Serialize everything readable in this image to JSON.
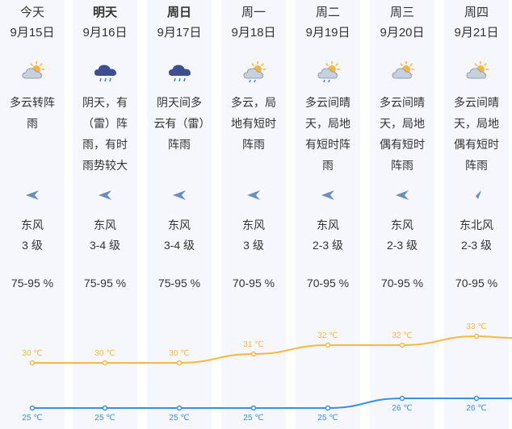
{
  "days": [
    {
      "day": "今天",
      "date": "9月15日",
      "icon": "cloudy-sun-icon",
      "desc": "多云转阵雨",
      "wind_dir": "东风",
      "wind_level": "3 级",
      "wind_icon": "wind-east-arrow-icon",
      "humidity": "75-95 %",
      "high": "30 ℃",
      "low": "25 ℃"
    },
    {
      "day": "明天",
      "date": "9月16日",
      "icon": "thunder-rain-icon",
      "desc": "阴天，有（雷）阵雨，有时雨势较大",
      "wind_dir": "东风",
      "wind_level": "3-4 级",
      "wind_icon": "wind-east-arrow-icon",
      "humidity": "75-95 %",
      "high": "30 ℃",
      "low": "25 ℃"
    },
    {
      "day": "周日",
      "date": "9月17日",
      "icon": "thunder-rain-icon",
      "desc": "阴天间多云有（雷）阵雨",
      "wind_dir": "东风",
      "wind_level": "3-4 级",
      "wind_icon": "wind-east-arrow-icon",
      "humidity": "75-95 %",
      "high": "30 ℃",
      "low": "25 ℃"
    },
    {
      "day": "周一",
      "date": "9月18日",
      "icon": "sun-cloud-rain-icon",
      "desc": "多云，局地有短时阵雨",
      "wind_dir": "东风",
      "wind_level": "3 级",
      "wind_icon": "wind-east-arrow-icon",
      "humidity": "70-95 %",
      "high": "31 ℃",
      "low": "25 ℃"
    },
    {
      "day": "周二",
      "date": "9月19日",
      "icon": "sun-cloud-rain-icon",
      "desc": "多云间晴天，局地有短时阵雨",
      "wind_dir": "东风",
      "wind_level": "2-3 级",
      "wind_icon": "wind-east-arrow-icon",
      "humidity": "70-95 %",
      "high": "32 ℃",
      "low": "25 ℃"
    },
    {
      "day": "周三",
      "date": "9月20日",
      "icon": "sun-cloud-icon",
      "desc": "多云间晴天，局地偶有短时阵雨",
      "wind_dir": "东风",
      "wind_level": "2-3 级",
      "wind_icon": "wind-east-arrow-icon",
      "humidity": "70-95 %",
      "high": "32 ℃",
      "low": "26 ℃"
    },
    {
      "day": "周四",
      "date": "9月21日",
      "icon": "sun-cloud-icon",
      "desc": "多云间晴天，局地偶有短时阵雨",
      "wind_dir": "东北风",
      "wind_level": "2-3 级",
      "wind_icon": "wind-northeast-arrow-icon",
      "humidity": "70-95 %",
      "high": "33 ℃",
      "low": "26 ℃"
    }
  ],
  "temps": {
    "high": [
      30,
      30,
      30,
      31,
      32,
      32,
      33
    ],
    "low": [
      25,
      25,
      25,
      25,
      25,
      26,
      26
    ],
    "high_color": "#f5b942",
    "low_color": "#3a8ee6"
  }
}
